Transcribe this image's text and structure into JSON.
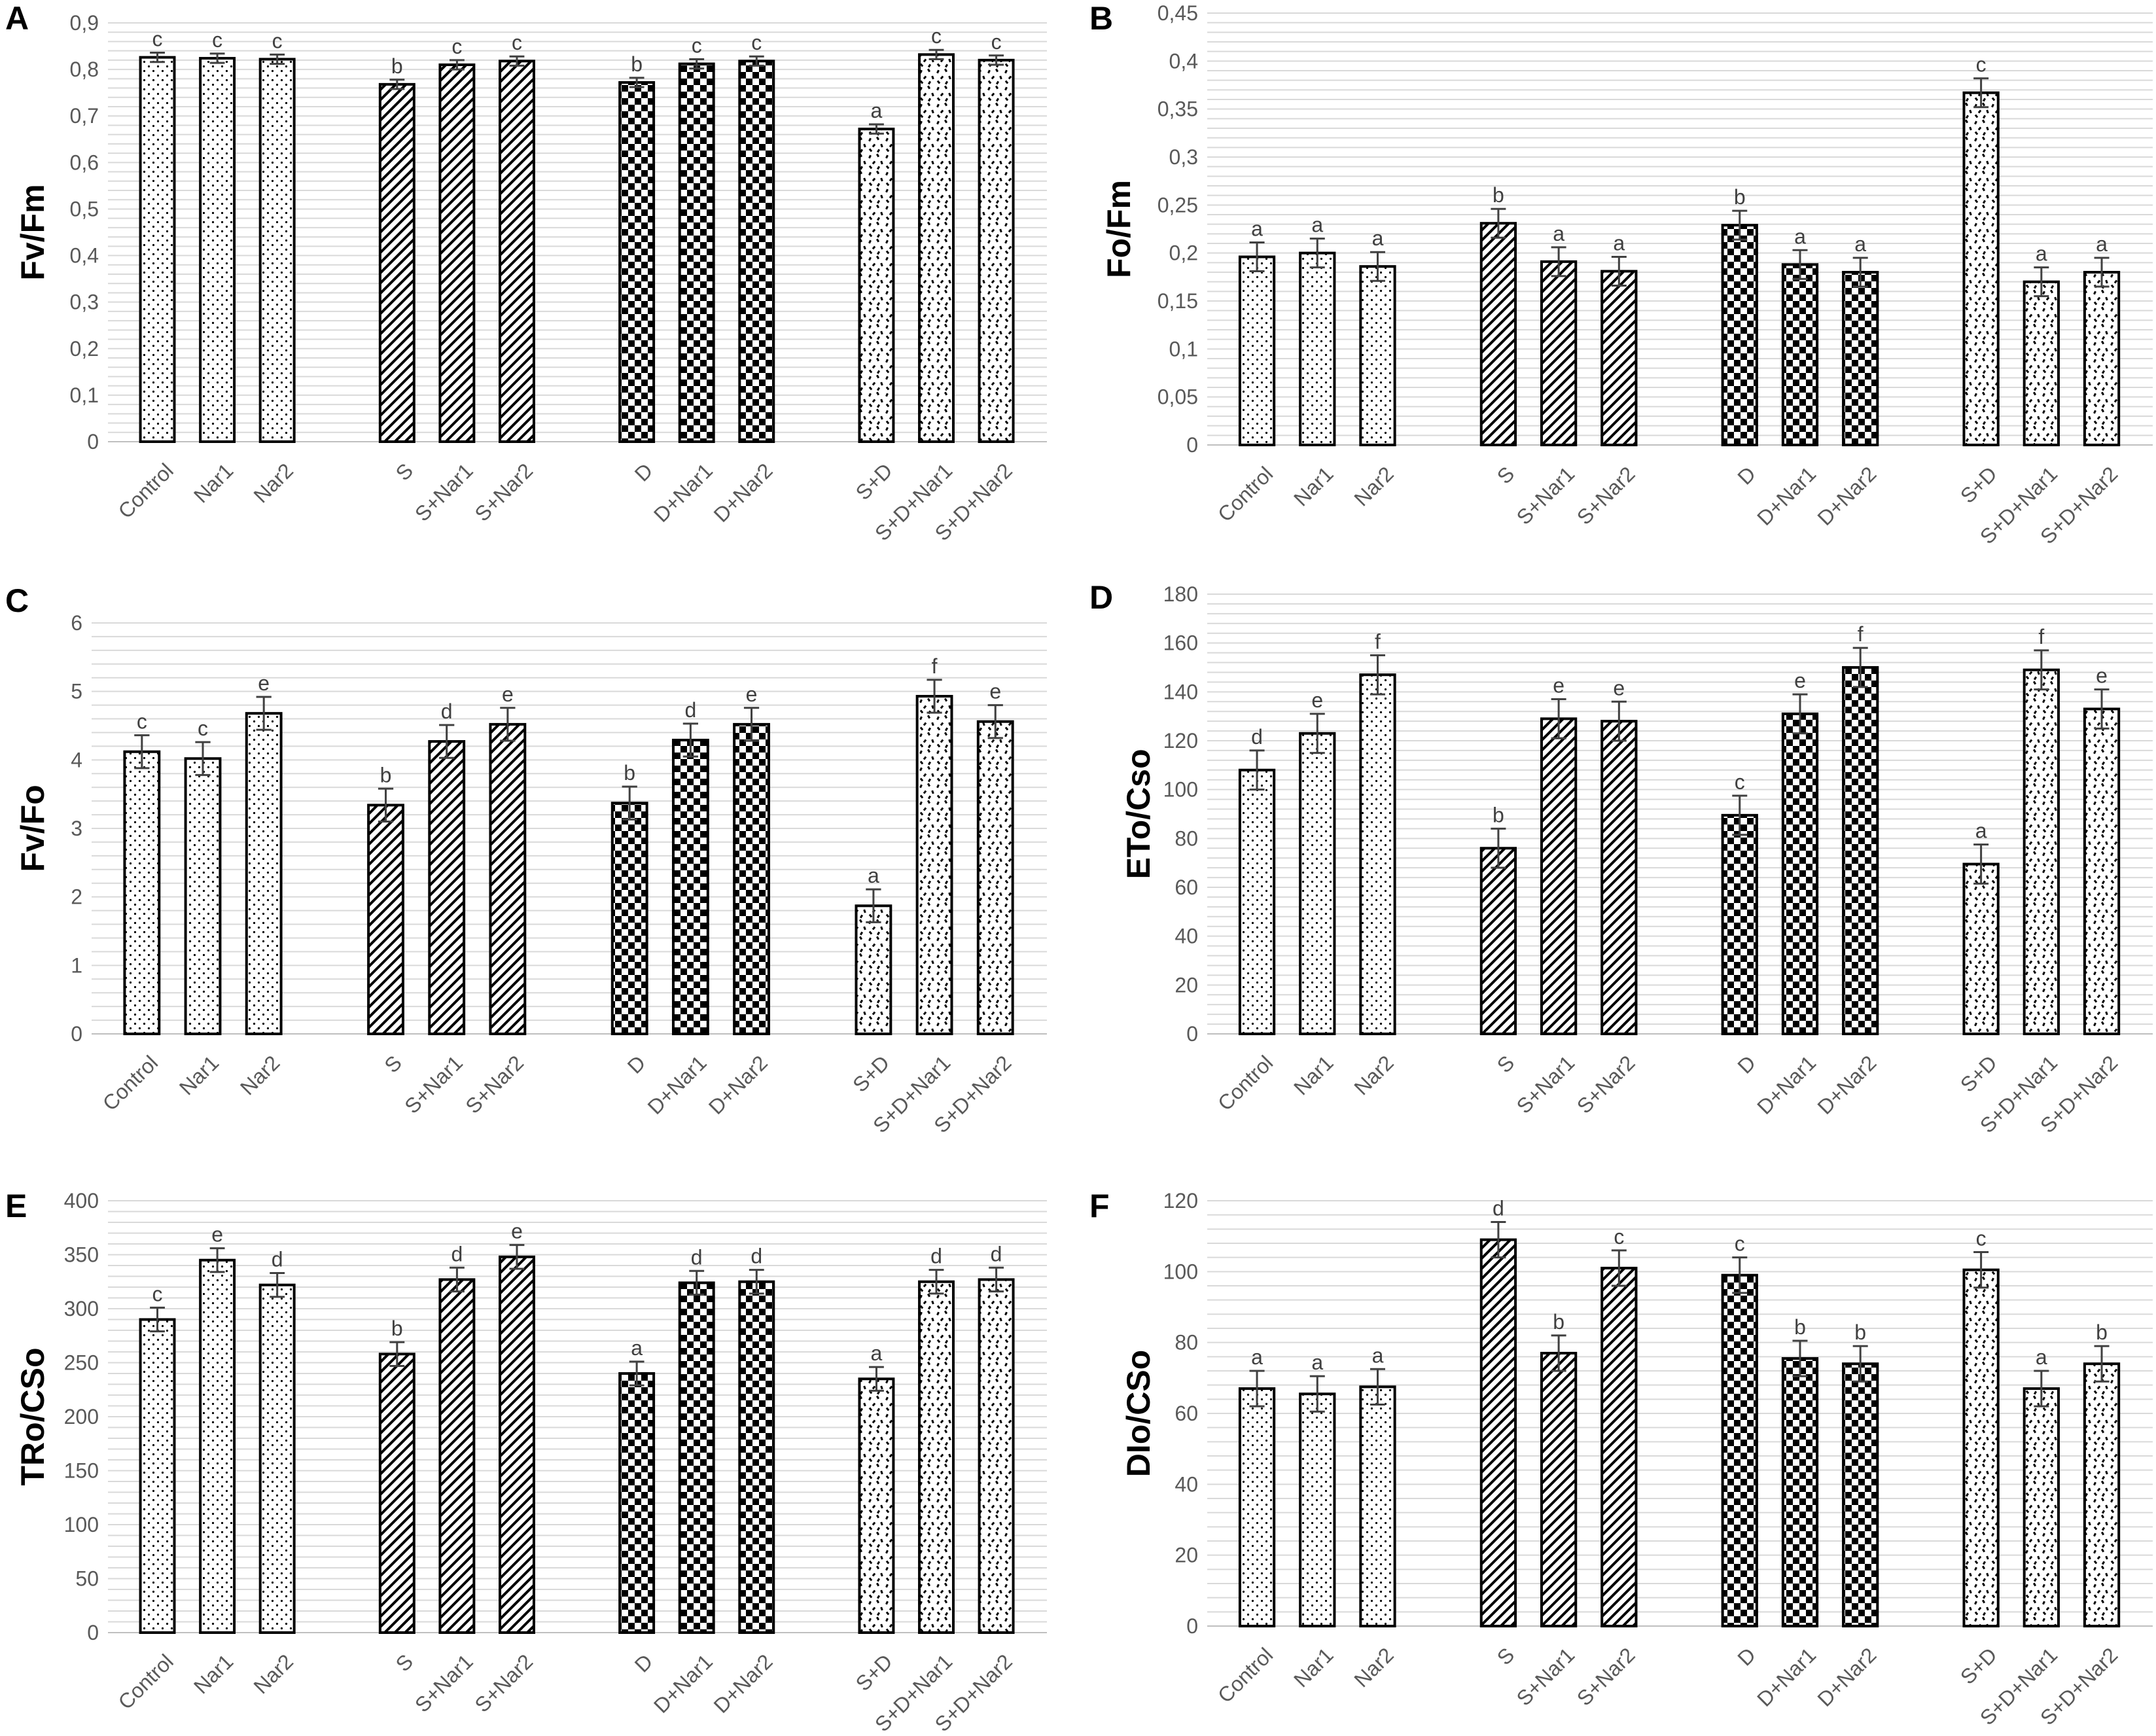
{
  "chart_data": [
    {
      "panel": "A",
      "type": "bar",
      "ylabel": "Fv/Fm",
      "ylim": [
        0,
        0.9
      ],
      "yticks": [
        0,
        0.1,
        0.2,
        0.3,
        0.4,
        0.5,
        0.6,
        0.7,
        0.8,
        0.9
      ],
      "ytick_labels": [
        "0",
        "0,1",
        "0,2",
        "0,3",
        "0,4",
        "0,5",
        "0,6",
        "0,7",
        "0,8",
        "0,9"
      ],
      "categories": [
        "Control",
        "Nar1",
        "Nar2",
        "S",
        "S+Nar1",
        "S+Nar2",
        "D",
        "D+Nar1",
        "D+Nar2",
        "S+D",
        "S+D+Nar1",
        "S+D+Nar2"
      ],
      "values": [
        0.826,
        0.824,
        0.822,
        0.768,
        0.81,
        0.818,
        0.772,
        0.812,
        0.818,
        0.672,
        0.832,
        0.82
      ],
      "errors": [
        0.01,
        0.01,
        0.01,
        0.01,
        0.01,
        0.01,
        0.01,
        0.01,
        0.01,
        0.01,
        0.01,
        0.01
      ],
      "letters": [
        "c",
        "c",
        "c",
        "b",
        "c",
        "c",
        "b",
        "c",
        "c",
        "a",
        "c",
        "c"
      ]
    },
    {
      "panel": "B",
      "type": "bar",
      "ylabel": "Fo/Fm",
      "ylim": [
        0,
        0.45
      ],
      "yticks": [
        0,
        0.05,
        0.1,
        0.15,
        0.2,
        0.25,
        0.3,
        0.35,
        0.4,
        0.45
      ],
      "ytick_labels": [
        "0",
        "0,05",
        "0,1",
        "0,15",
        "0,2",
        "0,25",
        "0,3",
        "0,35",
        "0,4",
        "0,45"
      ],
      "categories": [
        "Control",
        "Nar1",
        "Nar2",
        "S",
        "S+Nar1",
        "S+Nar2",
        "D",
        "D+Nar1",
        "D+Nar2",
        "S+D",
        "S+D+Nar1",
        "S+D+Nar2"
      ],
      "values": [
        0.196,
        0.2,
        0.186,
        0.231,
        0.191,
        0.181,
        0.229,
        0.188,
        0.18,
        0.367,
        0.17,
        0.18
      ],
      "errors": [
        0.015,
        0.015,
        0.015,
        0.015,
        0.015,
        0.015,
        0.015,
        0.015,
        0.015,
        0.015,
        0.015,
        0.015
      ],
      "letters": [
        "a",
        "a",
        "a",
        "b",
        "a",
        "a",
        "b",
        "a",
        "a",
        "c",
        "a",
        "a"
      ]
    },
    {
      "panel": "C",
      "type": "bar",
      "ylabel": "Fv/Fo",
      "ylim": [
        0,
        6
      ],
      "yticks": [
        0,
        1,
        2,
        3,
        4,
        5,
        6
      ],
      "ytick_labels": [
        "0",
        "1",
        "2",
        "3",
        "4",
        "5",
        "6"
      ],
      "categories": [
        "Control",
        "Nar1",
        "Nar2",
        "S",
        "S+Nar1",
        "S+Nar2",
        "D",
        "D+Nar1",
        "D+Nar2",
        "S+D",
        "S+D+Nar1",
        "S+D+Nar2"
      ],
      "values": [
        4.12,
        4.02,
        4.68,
        3.34,
        4.27,
        4.52,
        3.37,
        4.29,
        4.52,
        1.87,
        4.93,
        4.56
      ],
      "errors": [
        0.24,
        0.24,
        0.24,
        0.24,
        0.24,
        0.24,
        0.24,
        0.24,
        0.24,
        0.24,
        0.24,
        0.24
      ],
      "letters": [
        "c",
        "c",
        "e",
        "b",
        "d",
        "e",
        "b",
        "d",
        "e",
        "a",
        "f",
        "e"
      ]
    },
    {
      "panel": "D",
      "type": "bar",
      "ylabel": "ETo/Cso",
      "ylim": [
        0,
        180
      ],
      "yticks": [
        0,
        20,
        40,
        60,
        80,
        100,
        120,
        140,
        160,
        180
      ],
      "ytick_labels": [
        "0",
        "20",
        "40",
        "60",
        "80",
        "100",
        "120",
        "140",
        "160",
        "180"
      ],
      "categories": [
        "Control",
        "Nar1",
        "Nar2",
        "S",
        "S+Nar1",
        "S+Nar2",
        "D",
        "D+Nar1",
        "D+Nar2",
        "S+D",
        "S+D+Nar1",
        "S+D+Nar2"
      ],
      "values": [
        108,
        123,
        147,
        76,
        129,
        128,
        89.5,
        131,
        150,
        69.5,
        149,
        133
      ],
      "errors": [
        8,
        8,
        8,
        8,
        8,
        8,
        8,
        8,
        8,
        8,
        8,
        8
      ],
      "letters": [
        "d",
        "e",
        "f",
        "b",
        "e",
        "e",
        "c",
        "e",
        "f",
        "a",
        "f",
        "e"
      ]
    },
    {
      "panel": "E",
      "type": "bar",
      "ylabel": "TRo/CSo",
      "ylim": [
        0,
        400
      ],
      "yticks": [
        0,
        50,
        100,
        150,
        200,
        250,
        300,
        350,
        400
      ],
      "ytick_labels": [
        "0",
        "50",
        "100",
        "150",
        "200",
        "250",
        "300",
        "350",
        "400"
      ],
      "categories": [
        "Control",
        "Nar1",
        "Nar2",
        "S",
        "S+Nar1",
        "S+Nar2",
        "D",
        "D+Nar1",
        "D+Nar2",
        "S+D",
        "S+D+Nar1",
        "S+D+Nar2"
      ],
      "values": [
        290,
        345,
        322,
        258,
        327,
        348,
        240,
        324,
        325,
        235,
        325,
        327
      ],
      "errors": [
        11,
        11,
        11,
        11,
        11,
        11,
        11,
        11,
        11,
        11,
        11,
        11
      ],
      "letters": [
        "c",
        "e",
        "d",
        "b",
        "d",
        "e",
        "a",
        "d",
        "d",
        "a",
        "d",
        "d"
      ]
    },
    {
      "panel": "F",
      "type": "bar",
      "ylabel": "DIo/CSo",
      "ylim": [
        0,
        120
      ],
      "yticks": [
        0,
        20,
        40,
        60,
        80,
        100,
        120
      ],
      "ytick_labels": [
        "0",
        "20",
        "40",
        "60",
        "80",
        "100",
        "120"
      ],
      "categories": [
        "Control",
        "Nar1",
        "Nar2",
        "S",
        "S+Nar1",
        "S+Nar2",
        "D",
        "D+Nar1",
        "D+Nar2",
        "S+D",
        "S+D+Nar1",
        "S+D+Nar2"
      ],
      "values": [
        67,
        65.5,
        67.5,
        109,
        77,
        101,
        99,
        75.5,
        74,
        100.5,
        67,
        74
      ],
      "errors": [
        5,
        5,
        5,
        5,
        5,
        5,
        5,
        5,
        5,
        5,
        5,
        5
      ],
      "letters": [
        "a",
        "a",
        "a",
        "d",
        "b",
        "c",
        "c",
        "b",
        "b",
        "c",
        "a",
        "b"
      ]
    }
  ]
}
